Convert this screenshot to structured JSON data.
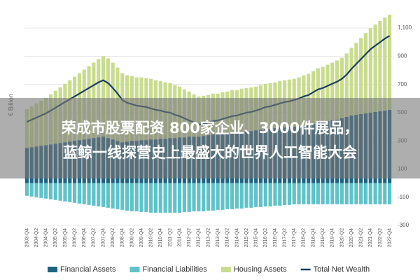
{
  "chart_data": {
    "type": "bar",
    "y_label": "€ Billion",
    "categories": [
      "2003-Q4",
      null,
      "2004-Q2",
      null,
      "2004-Q4",
      null,
      "2005-Q2",
      null,
      "2005-Q4",
      null,
      "2006-Q2",
      null,
      "2006-Q4",
      null,
      "2007-Q2",
      null,
      "2007-Q4",
      null,
      "2008-Q2",
      null,
      "2008-Q4",
      null,
      "2009-Q2",
      null,
      "2009-Q4",
      null,
      "2010-Q2",
      null,
      "2010-Q4",
      null,
      "2011-Q2",
      null,
      "2011-Q4",
      null,
      "2012-Q2",
      null,
      "2012-Q4",
      null,
      "2013-Q2",
      null,
      "2013-Q4",
      null,
      "2014-Q2",
      null,
      "2014-Q4",
      null,
      "2015-Q2",
      null,
      "2015-Q4",
      null,
      "2016-Q2",
      null,
      "2016-Q4",
      null,
      "2017-Q2",
      null,
      "2017-Q4",
      null,
      "2018-Q2",
      null,
      "2018-Q4",
      null,
      "2019-Q2",
      null,
      "2019-Q4",
      null,
      "2020-Q2",
      null,
      "2020-Q4",
      null,
      "2021-Q2",
      null,
      "2021-Q4",
      null,
      "2022-Q2",
      null,
      "2022-Q4"
    ],
    "series": [
      {
        "name": "Financial Assets",
        "type": "bar",
        "color": "#1f6382",
        "values": [
          250,
          255,
          260,
          265,
          270,
          275,
          280,
          285,
          290,
          295,
          300,
          305,
          310,
          315,
          320,
          325,
          330,
          320,
          310,
          300,
          290,
          295,
          300,
          300,
          305,
          305,
          310,
          310,
          315,
          315,
          320,
          320,
          325,
          325,
          330,
          330,
          330,
          335,
          340,
          345,
          345,
          350,
          355,
          360,
          360,
          365,
          370,
          370,
          375,
          380,
          385,
          385,
          390,
          395,
          395,
          400,
          400,
          405,
          410,
          410,
          420,
          430,
          435,
          440,
          445,
          450,
          460,
          470,
          480,
          485,
          490,
          495,
          500,
          505,
          510,
          515,
          520
        ]
      },
      {
        "name": "Financial Liabilities",
        "type": "bar",
        "color": "#5fc3c9",
        "values": [
          -90,
          -95,
          -100,
          -105,
          -110,
          -115,
          -120,
          -125,
          -130,
          -135,
          -140,
          -145,
          -150,
          -155,
          -160,
          -165,
          -170,
          -175,
          -180,
          -185,
          -190,
          -195,
          -200,
          -200,
          -205,
          -205,
          -210,
          -210,
          -210,
          -210,
          -210,
          -210,
          -210,
          -205,
          -205,
          -200,
          -200,
          -200,
          -195,
          -195,
          -190,
          -190,
          -185,
          -185,
          -180,
          -180,
          -175,
          -175,
          -170,
          -170,
          -165,
          -165,
          -160,
          -160,
          -155,
          -155,
          -150,
          -150,
          -150,
          -150,
          -150,
          -150,
          -150,
          -150,
          -150,
          -150,
          -150,
          -150,
          -150,
          -150,
          -150,
          -150,
          -150,
          -150,
          -150,
          -150,
          -150
        ]
      },
      {
        "name": "Housing Assets",
        "type": "bar",
        "color": "#c9dc8e",
        "values": [
          275,
          290,
          305,
          320,
          335,
          355,
          375,
          395,
          415,
          435,
          455,
          475,
          495,
          515,
          535,
          555,
          570,
          565,
          545,
          520,
          490,
          470,
          460,
          450,
          445,
          440,
          430,
          420,
          410,
          400,
          390,
          375,
          360,
          340,
          320,
          300,
          285,
          285,
          285,
          290,
          290,
          295,
          295,
          300,
          300,
          305,
          305,
          310,
          310,
          315,
          320,
          325,
          325,
          330,
          335,
          335,
          340,
          345,
          355,
          365,
          375,
          385,
          390,
          400,
          410,
          420,
          430,
          450,
          480,
          510,
          540,
          570,
          600,
          620,
          640,
          660,
          675
        ]
      },
      {
        "name": "Total Net Wealth",
        "type": "line",
        "color": "#1b3e5c",
        "values": [
          435,
          450,
          465,
          480,
          495,
          515,
          535,
          555,
          575,
          595,
          615,
          635,
          655,
          675,
          695,
          715,
          730,
          710,
          675,
          635,
          590,
          570,
          560,
          550,
          545,
          540,
          530,
          520,
          515,
          505,
          500,
          485,
          475,
          460,
          445,
          430,
          415,
          420,
          430,
          440,
          445,
          455,
          465,
          475,
          480,
          490,
          500,
          505,
          515,
          525,
          540,
          545,
          555,
          565,
          575,
          580,
          590,
          600,
          615,
          625,
          645,
          665,
          675,
          690,
          705,
          720,
          740,
          770,
          810,
          845,
          880,
          915,
          950,
          975,
          1000,
          1025,
          1045
        ]
      }
    ],
    "ylim": [
      -300,
      1200
    ],
    "yticks": [
      -300,
      -100,
      100,
      300,
      500,
      700,
      900,
      {
        "value": 1100,
        "label": "1,100"
      }
    ],
    "grid": true
  },
  "banner": {
    "lines": [
      "荣成市股票配资 800家企业、3000件展品，",
      "蓝鲸一线探营史上最盛大的世界人工智能大会"
    ]
  }
}
